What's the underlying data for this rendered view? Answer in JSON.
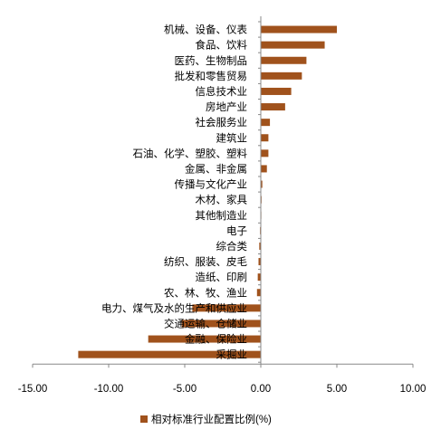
{
  "chart_data": {
    "type": "bar",
    "orientation": "horizontal",
    "categories": [
      "机械、设备、仪表",
      "食品、饮料",
      "医药、生物制品",
      "批发和零售贸易",
      "信息技术业",
      "房地产业",
      "社会服务业",
      "建筑业",
      "石油、化学、塑胶、塑料",
      "金属、非金属",
      "传播与文化产业",
      "木材、家具",
      "其他制造业",
      "电子",
      "综合类",
      "纺织、服装、皮毛",
      "造纸、印刷",
      "农、林、牧、渔业",
      "电力、煤气及水的生产和供应业",
      "交通运输、仓储业",
      "金融、保险业",
      "采掘业"
    ],
    "series": [
      {
        "name": "相对标准行业配置比例(%)",
        "color": "#a0521c",
        "values": [
          5.0,
          4.2,
          3.0,
          2.7,
          2.0,
          1.6,
          0.6,
          0.5,
          0.5,
          0.4,
          0.1,
          0.05,
          0.03,
          -0.05,
          -0.1,
          -0.15,
          -0.2,
          -0.25,
          -4.5,
          -5.2,
          -7.4,
          -12.0
        ]
      }
    ],
    "xlim": [
      -15,
      10
    ],
    "xticks": [
      "-15.00",
      "-10.00",
      "-5.00",
      "0.00",
      "5.00",
      "10.00"
    ],
    "tick_values": [
      -15,
      -10,
      -5,
      0,
      5,
      10
    ],
    "grid": false,
    "legend_position": "bottom"
  }
}
